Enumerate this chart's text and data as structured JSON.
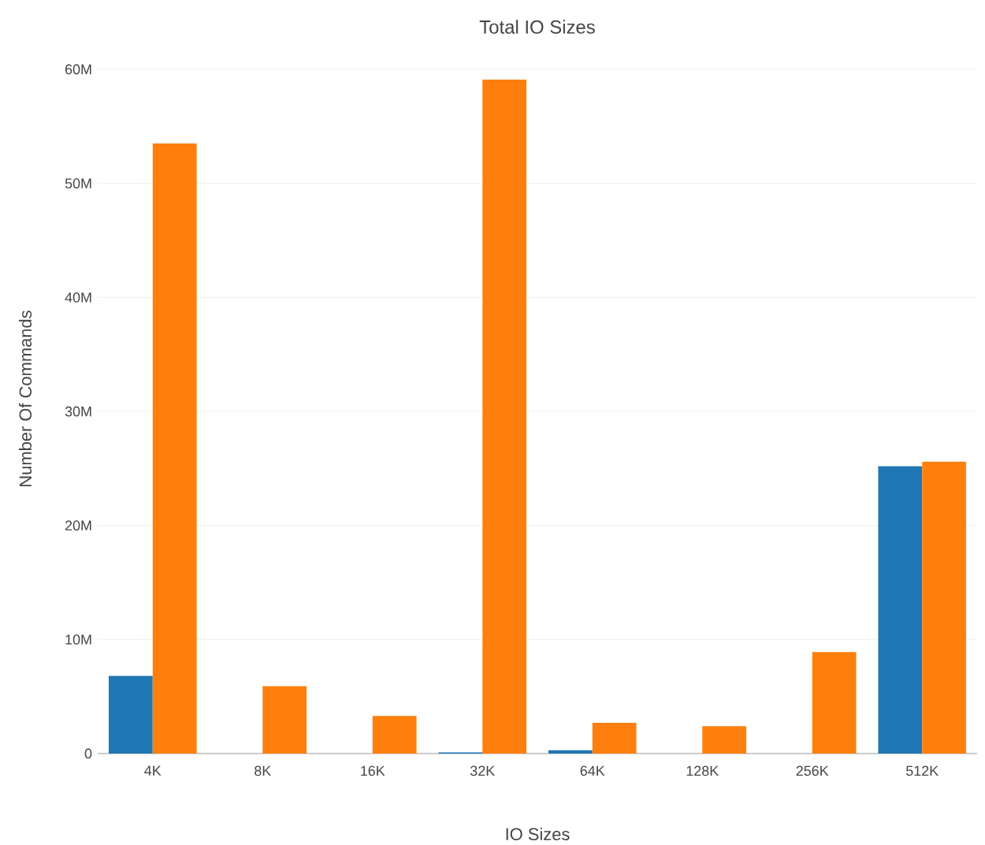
{
  "chart_data": {
    "type": "bar",
    "title": "Total IO Sizes",
    "xlabel": "IO Sizes",
    "ylabel": "Number Of Commands",
    "categories": [
      "4K",
      "8K",
      "16K",
      "32K",
      "64K",
      "128K",
      "256K",
      "512K"
    ],
    "series": [
      {
        "color": "#1f77b4",
        "values": [
          6800000,
          0,
          0,
          100000,
          300000,
          0,
          0,
          25200000
        ]
      },
      {
        "color": "#ff7f0e",
        "values": [
          53500000,
          5900000,
          3300000,
          59100000,
          2700000,
          2400000,
          8900000,
          25600000
        ]
      }
    ],
    "ylim": [
      0,
      60000000
    ],
    "yticks": [
      {
        "value": 0,
        "label": "0"
      },
      {
        "value": 10000000,
        "label": "10M"
      },
      {
        "value": 20000000,
        "label": "20M"
      },
      {
        "value": 30000000,
        "label": "30M"
      },
      {
        "value": 40000000,
        "label": "40M"
      },
      {
        "value": 50000000,
        "label": "50M"
      },
      {
        "value": 60000000,
        "label": "60M"
      }
    ],
    "grid": "y"
  }
}
